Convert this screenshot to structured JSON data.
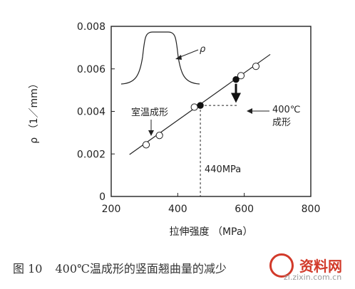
{
  "chart_data": {
    "type": "scatter",
    "xlabel": "拉伸强度 （MPa）",
    "ylabel": "ρ （1／mm）",
    "xlim": [
      200,
      800
    ],
    "ylim": [
      0,
      0.008
    ],
    "xticks": [
      "200",
      "400",
      "600",
      "800"
    ],
    "yticks": [
      "0",
      "0.002",
      "0.004",
      "0.006",
      "0.008"
    ],
    "points": [
      {
        "x": 305,
        "y": 0.00243
      },
      {
        "x": 345,
        "y": 0.00287
      },
      {
        "x": 450,
        "y": 0.0042
      },
      {
        "x": 590,
        "y": 0.00568
      },
      {
        "x": 635,
        "y": 0.00612
      }
    ],
    "filled_points": [
      {
        "x": 468,
        "y": 0.00428
      },
      {
        "x": 575,
        "y": 0.0055
      }
    ],
    "fit_line": {
      "x": [
        255,
        678
      ],
      "y": [
        0.00197,
        0.00668
      ]
    },
    "reference_x": 468,
    "reference_y": 0.00428,
    "arrow": {
      "x": 575,
      "from": 0.0055,
      "to": 0.0044
    },
    "annotations": {
      "room_temp": "室温成形",
      "hot_400_line1": "400℃",
      "hot_400_line2": "成形",
      "strength_440": "440MPa",
      "inset_rho": "ρ"
    },
    "grid": false
  },
  "caption": {
    "figure_number": "图 10",
    "text": "400℃温成形的竖面翘曲量的减少"
  },
  "watermark": {
    "brand": "资料网",
    "site": "zl.zixin.com.cn"
  }
}
